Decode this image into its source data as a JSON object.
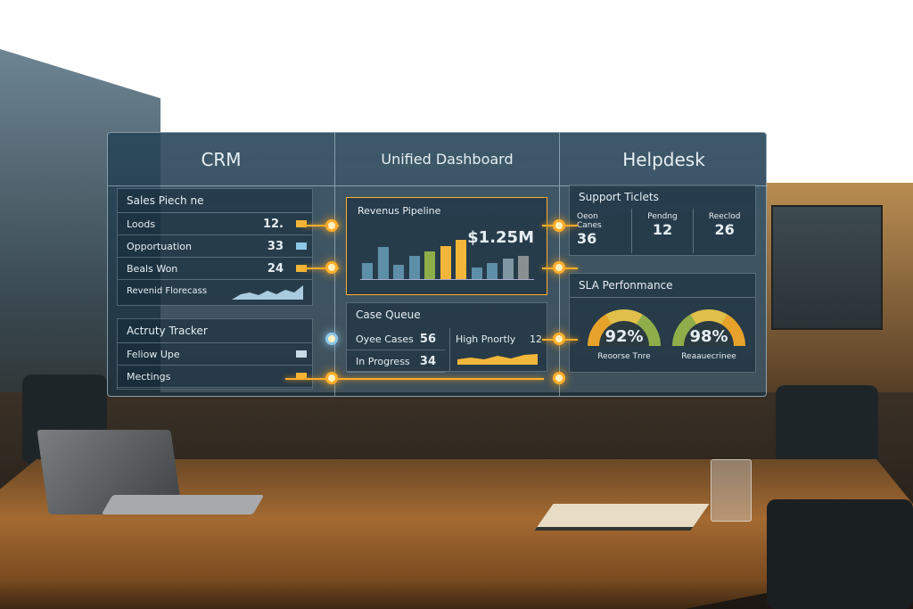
{
  "crm": {
    "title": "CRM",
    "sales_pipeline": {
      "title": "Sales Piech ne",
      "rows": [
        {
          "label": "Loods",
          "value": "12."
        },
        {
          "label": "Opportuation",
          "value": "33"
        },
        {
          "label": "Beals Won",
          "value": "24"
        }
      ],
      "forecast_label": "Revenid Florecass"
    },
    "activity_tracker": {
      "title": "Actruty Tracker",
      "rows": [
        {
          "label": "Feliow Upe"
        },
        {
          "label": "Mectings"
        }
      ]
    }
  },
  "dashboard": {
    "title": "Unified Dashboard",
    "revenue": {
      "title": "Revenus Pipeline",
      "total": "$1.25M",
      "bar_levels": [
        0.35,
        0.7,
        0.3,
        0.5,
        0.6,
        0.72,
        0.85,
        0.25,
        0.35,
        0.45,
        0.5
      ],
      "bar_colors": [
        "#5d8fa8",
        "#5d8fa8",
        "#5d8fa8",
        "#5d8fa8",
        "#8fae4a",
        "#f2b63a",
        "#f2b63a",
        "#5d8fa8",
        "#5d8fa8",
        "#7f97a3",
        "#8a8f90"
      ]
    },
    "case_queue": {
      "title": "Case Queue",
      "rows": [
        {
          "label": "Oyee Cases",
          "value": "56"
        },
        {
          "label": "In Progress",
          "value": "34"
        }
      ],
      "high_priority_label": "High Pnortly",
      "high_priority_value": "12"
    }
  },
  "helpdesk": {
    "title": "Helpdesk",
    "support_tickets": {
      "title": "Support Ticlets",
      "stats": [
        {
          "label": "Oeon Canes",
          "value": "36"
        },
        {
          "label": "Pendng",
          "value": "12"
        },
        {
          "label": "Reeclod",
          "value": "26"
        }
      ]
    },
    "sla": {
      "title": "SLA Perfonmance",
      "gauges": [
        {
          "value": "92%",
          "label": "Reoorse Tnre",
          "level": 0.92
        },
        {
          "value": "98%",
          "label": "Reaauecrinee",
          "level": 0.98
        }
      ]
    }
  },
  "colors": {
    "accent": "#ffae2b",
    "panel": "#284656"
  }
}
